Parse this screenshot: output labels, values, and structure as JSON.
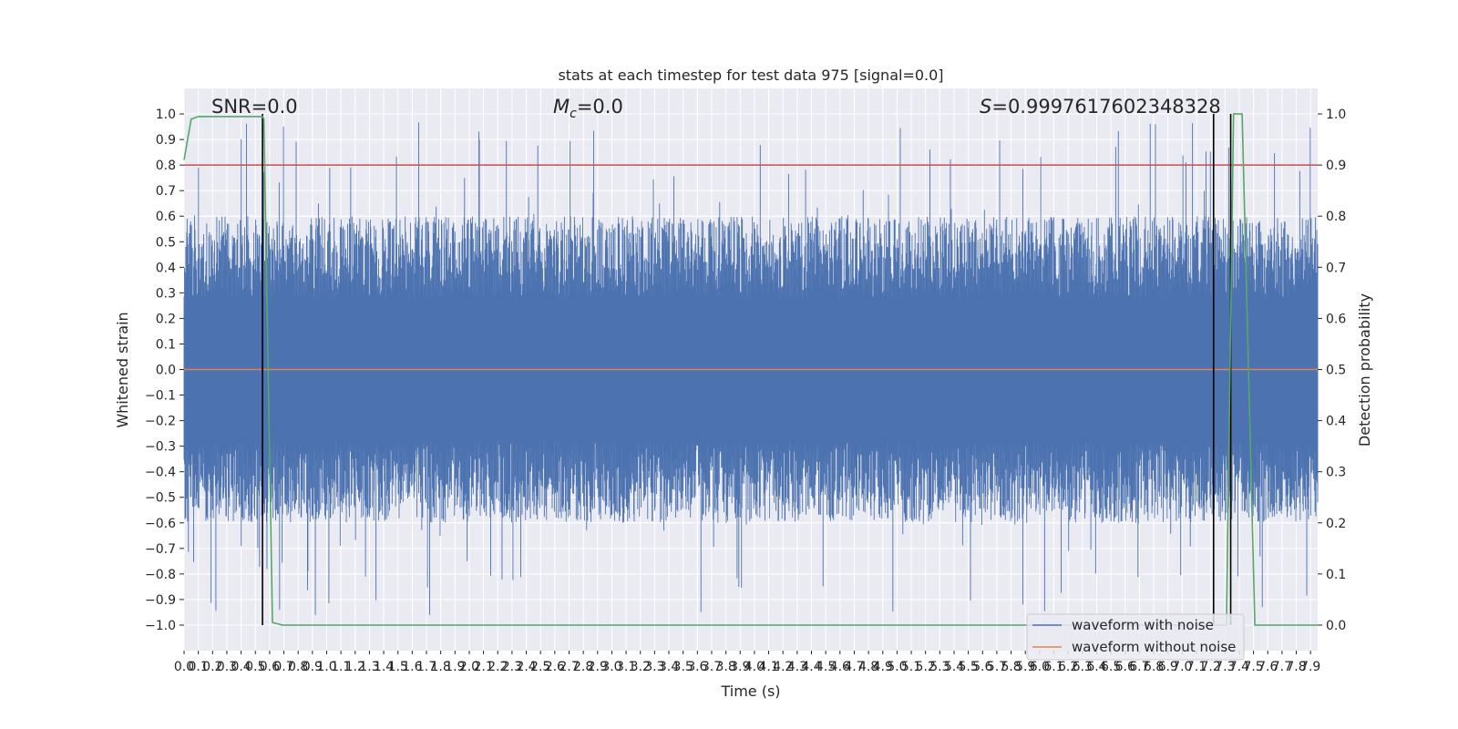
{
  "chart_data": {
    "type": "line",
    "title": "stats at each timestep for test data 975 [signal=0.0]",
    "xlabel": "Time (s)",
    "ylabel_left": "Whitened strain",
    "ylabel_right": "Detection probability",
    "xlim": [
      0.0,
      7.95
    ],
    "ylim_left": [
      -1.1,
      1.1
    ],
    "ylim_right": [
      -0.05,
      1.05
    ],
    "x_ticks": [
      "0.0",
      "0.1",
      "0.2",
      "0.3",
      "0.4",
      "0.5",
      "0.6",
      "0.7",
      "0.8",
      "0.9",
      "1.0",
      "1.1",
      "1.2",
      "1.3",
      "1.4",
      "1.5",
      "1.6",
      "1.7",
      "1.8",
      "1.9",
      "2.0",
      "2.1",
      "2.2",
      "2.3",
      "2.4",
      "2.5",
      "2.6",
      "2.7",
      "2.8",
      "2.9",
      "3.0",
      "3.1",
      "3.2",
      "3.3",
      "3.4",
      "3.5",
      "3.6",
      "3.7",
      "3.8",
      "3.9",
      "4.0",
      "4.1",
      "4.2",
      "4.3",
      "4.4",
      "4.5",
      "4.6",
      "4.7",
      "4.8",
      "4.9",
      "5.0",
      "5.1",
      "5.2",
      "5.3",
      "5.4",
      "5.5",
      "5.6",
      "5.7",
      "5.8",
      "5.9",
      "6.0",
      "6.1",
      "6.2",
      "6.3",
      "6.4",
      "6.5",
      "6.6",
      "6.7",
      "6.8",
      "6.9",
      "7.0",
      "7.1",
      "7.2",
      "7.3",
      "7.4",
      "7.5",
      "7.6",
      "7.7",
      "7.8",
      "7.9"
    ],
    "y_ticks_left": [
      "1.0",
      "0.9",
      "0.8",
      "0.7",
      "0.6",
      "0.5",
      "0.4",
      "0.3",
      "0.2",
      "0.1",
      "0.0",
      "−0.1",
      "−0.2",
      "−0.3",
      "−0.4",
      "−0.5",
      "−0.6",
      "−0.7",
      "−0.8",
      "−0.9",
      "−1.0"
    ],
    "y_ticks_right": [
      "1.0",
      "0.9",
      "0.8",
      "0.7",
      "0.6",
      "0.5",
      "0.4",
      "0.3",
      "0.2",
      "0.1",
      "0.0"
    ],
    "annotations": {
      "snr": "SNR=0.0",
      "mc_symbol": "M",
      "mc_sub": "c",
      "mc_rest": "=0.0",
      "s_symbol": "S",
      "s_rest": "=0.9997617602348328"
    },
    "series": [
      {
        "name": "waveform with noise",
        "color": "#4c72b0",
        "amplitude_range": [
          -0.97,
          0.97
        ]
      },
      {
        "name": "waveform without noise",
        "color": "#dd8452",
        "values_constant": 0.0
      },
      {
        "color": "#55a868",
        "axis": "right",
        "x": [
          0.0,
          0.05,
          0.1,
          0.55,
          0.56,
          0.62,
          0.69,
          7.2,
          7.31,
          7.36,
          7.42,
          7.51,
          7.95
        ],
        "y": [
          0.91,
          0.99,
          0.995,
          0.995,
          0.99,
          0.005,
          0.0,
          0.0,
          0.0,
          1.0,
          1.0,
          0.0,
          0.0
        ]
      }
    ],
    "threshold_line": {
      "axis": "right",
      "value": 0.9,
      "color": "#c44e52"
    },
    "vertical_markers": [
      0.55,
      7.22,
      7.34
    ],
    "legend_position": "lower right",
    "grid": true
  }
}
